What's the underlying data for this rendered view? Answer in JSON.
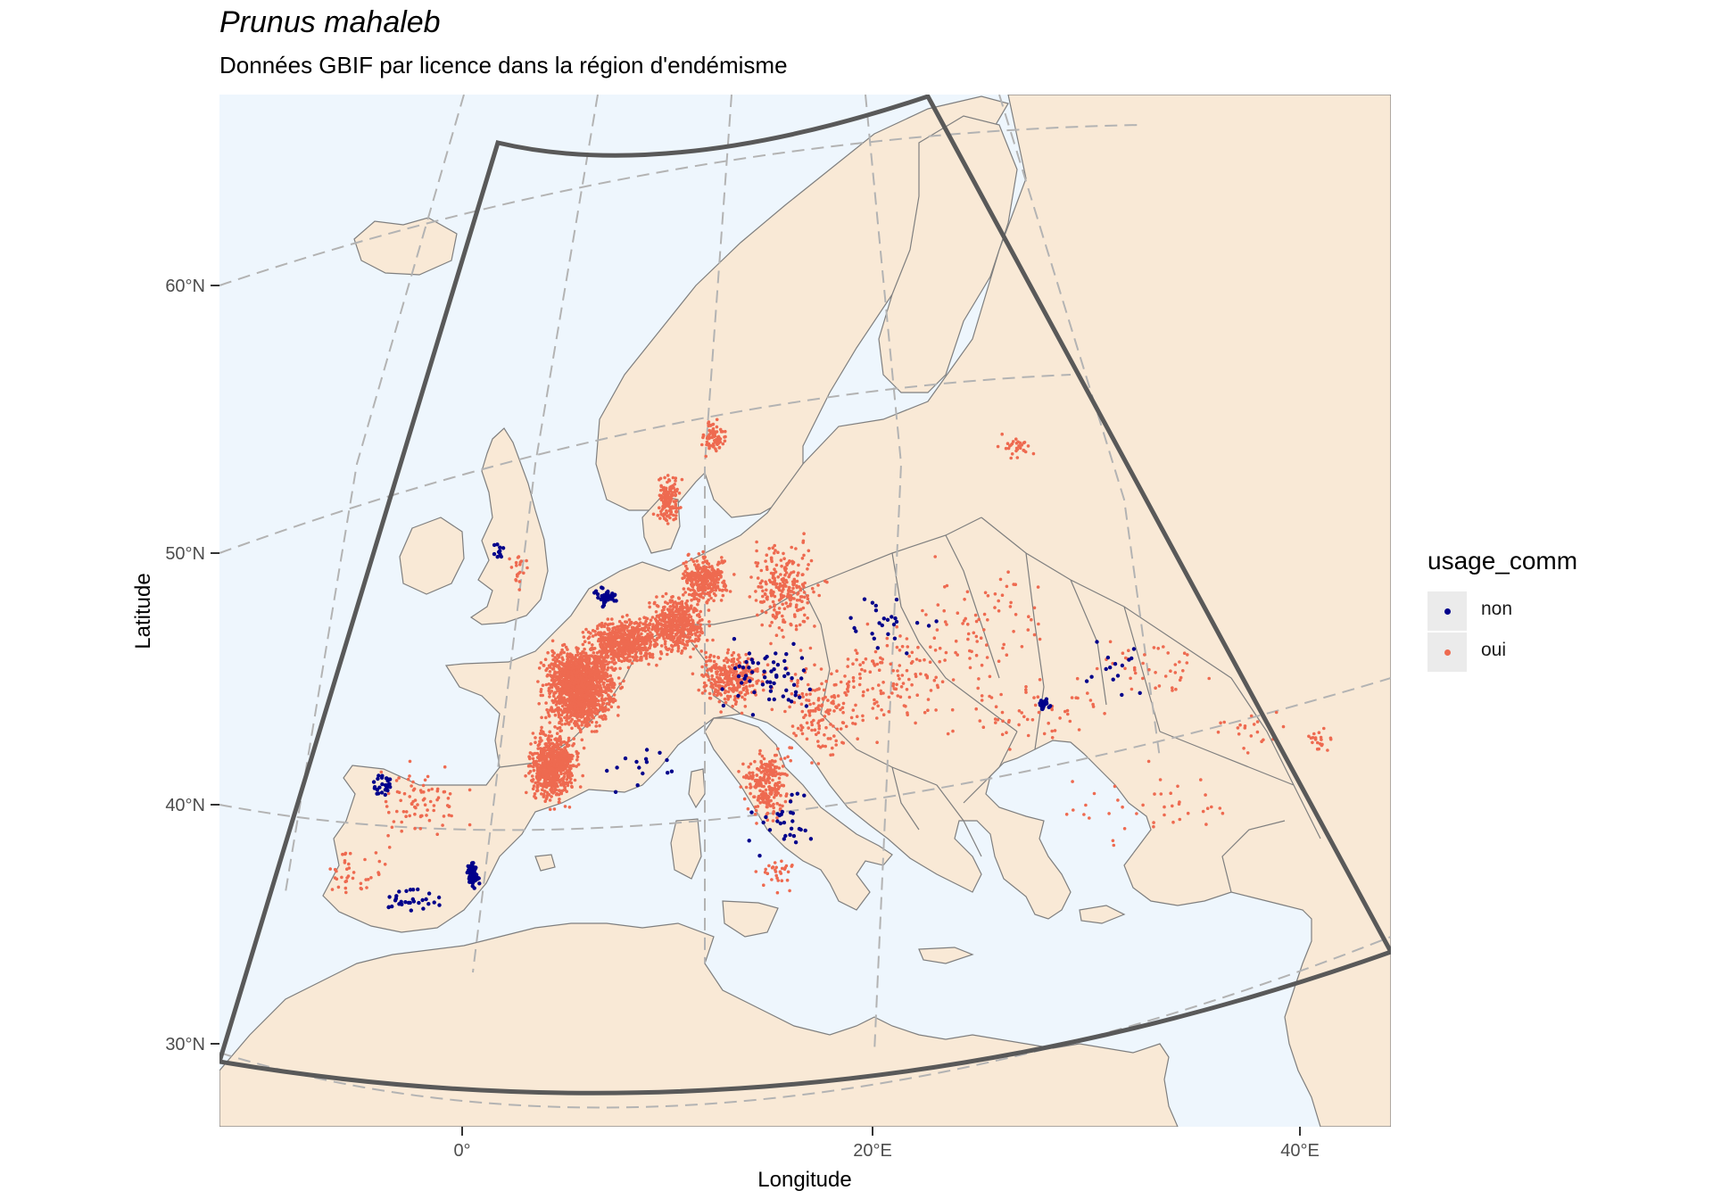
{
  "title": "Prunus mahaleb",
  "subtitle": "Données GBIF par licence dans la région d'endémisme",
  "map": {
    "xlabel": "Longitude",
    "ylabel": "Latitude",
    "lat_ticks": [
      "60°N",
      "50°N",
      "40°N",
      "30°N"
    ],
    "lon_ticks": [
      "0°",
      "20°E",
      "40°E"
    ],
    "colors": {
      "sea": "#eef6fd",
      "land": "#f9e9d6",
      "border": "#7f7f7f",
      "graticule": "#b3b3b3",
      "region_outline": "#595959"
    }
  },
  "legend": {
    "title": "usage_comm",
    "items": [
      {
        "label": "non",
        "color": "#00008b"
      },
      {
        "label": "oui",
        "color": "#ee6a50"
      }
    ]
  }
}
